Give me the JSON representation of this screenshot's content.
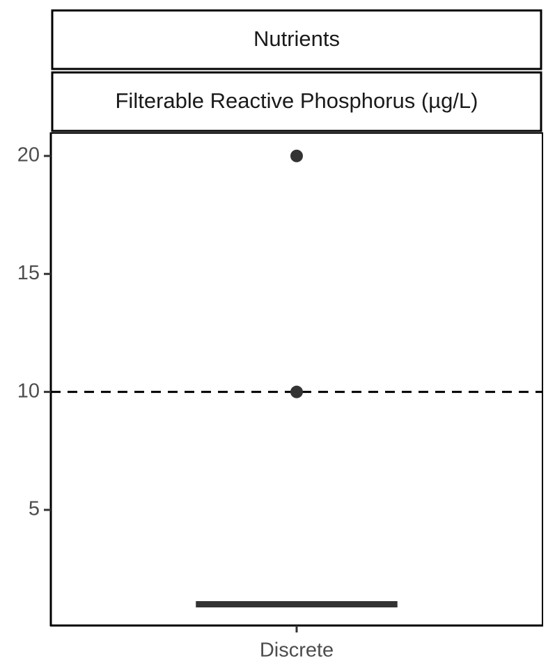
{
  "chart_data": {
    "type": "box",
    "strips": [
      "Nutrients",
      "Filterable Reactive Phosphorus (µg/L)"
    ],
    "categories": [
      "Discrete"
    ],
    "boxes": [
      {
        "whislo": 1,
        "q1": 1,
        "median": 1,
        "q3": 1,
        "whishi": 1,
        "outliers": [
          10,
          20
        ]
      }
    ],
    "color": "#333333",
    "ylim": [
      0.1,
      21
    ],
    "yticks": [
      5,
      10,
      15,
      20
    ],
    "hline": {
      "value": 10,
      "style": "dashed"
    }
  }
}
